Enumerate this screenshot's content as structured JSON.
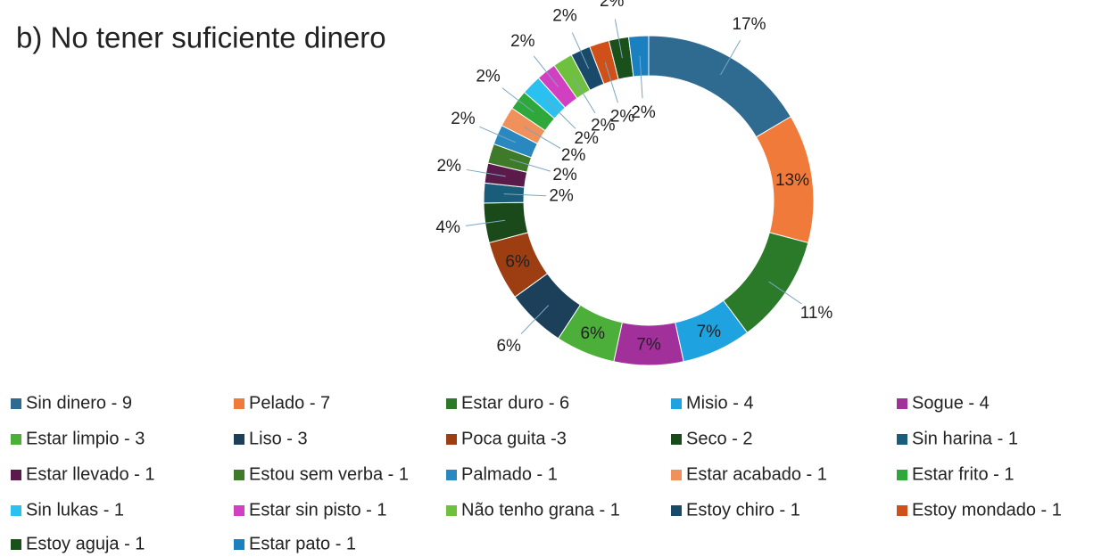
{
  "chart_data": {
    "type": "donut",
    "title": "b) No tener suficiente dinero",
    "categories": [
      "Sin dinero - 9",
      "Pelado - 7",
      "Estar duro - 6",
      "Misio - 4",
      "Sogue - 4",
      "Estar limpio - 3",
      "Liso - 3",
      "Poca guita -3",
      "Seco - 2",
      "Sin harina - 1",
      "Estar llevado - 1",
      "Estou sem verba - 1",
      "Palmado - 1",
      "Estar acabado - 1",
      "Estar frito - 1",
      "Sin lukas - 1",
      "Estar sin pisto - 1",
      "Não tenho grana - 1",
      "Estoy chiro - 1",
      "Estoy mondado - 1",
      "Estoy aguja - 1",
      "Estar pato - 1"
    ],
    "values": [
      17,
      13,
      11,
      7,
      7,
      6,
      6,
      6,
      4,
      2,
      2,
      2,
      2,
      2,
      2,
      2,
      2,
      2,
      2,
      2,
      2,
      2
    ],
    "value_labels": [
      "17%",
      "13%",
      "11%",
      "7%",
      "7%",
      "6%",
      "6%",
      "6%",
      "4%",
      "2%",
      "2%",
      "2%",
      "2%",
      "2%",
      "2%",
      "2%",
      "2%",
      "2%",
      "2%",
      "2%",
      "2%",
      "2%"
    ],
    "colors": [
      "#2f6b91",
      "#f07a3a",
      "#2a7a2a",
      "#1fa3e0",
      "#a2309a",
      "#4caf3a",
      "#1c3f5a",
      "#9c3d12",
      "#1a4a1a",
      "#1a5d7a",
      "#5a1a4a",
      "#3f7a2a",
      "#2a88c0",
      "#f0905a",
      "#2ea83a",
      "#2ac0f0",
      "#d040c0",
      "#70c040",
      "#1a4a6a",
      "#d0501a",
      "#1a501a",
      "#1a80c0"
    ],
    "legend": "bottom"
  }
}
